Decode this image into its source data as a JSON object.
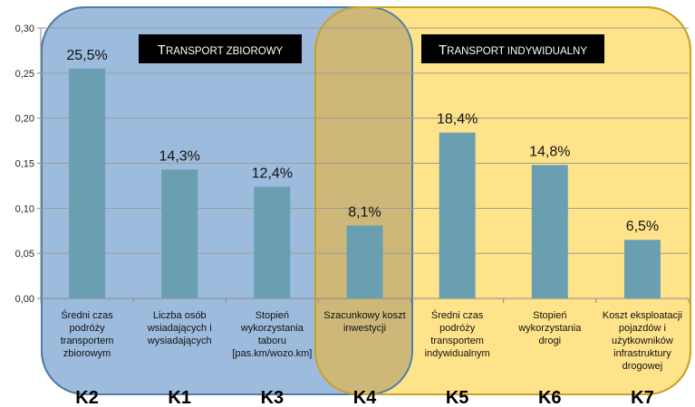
{
  "chart_data": {
    "type": "bar",
    "title": "",
    "xlabel": "",
    "ylabel": "",
    "ylim": [
      0,
      0.3
    ],
    "yticks": [
      "0,00",
      "0,05",
      "0,10",
      "0,15",
      "0,20",
      "0,25",
      "0,30"
    ],
    "grid": true,
    "bar_color": "#6A9FB1",
    "categories": [
      {
        "code": "K2",
        "label": [
          "Średni czas",
          "podróży",
          "transportem",
          "zbiorowym"
        ],
        "value": 0.255,
        "data_label": "25,5%"
      },
      {
        "code": "K1",
        "label": [
          "Liczba osób",
          "wsiadających i",
          "wysiadających"
        ],
        "value": 0.143,
        "data_label": "14,3%"
      },
      {
        "code": "K3",
        "label": [
          "Stopień",
          "wykorzystania",
          "taboru",
          "[pas.km/wozo.km]"
        ],
        "value": 0.124,
        "data_label": "12,4%"
      },
      {
        "code": "K4",
        "label": [
          "Szacunkowy koszt",
          "inwestycji"
        ],
        "value": 0.081,
        "data_label": "8,1%"
      },
      {
        "code": "K5",
        "label": [
          "Średni czas",
          "podróży",
          "transportem",
          "indywidualnym"
        ],
        "value": 0.184,
        "data_label": "18,4%"
      },
      {
        "code": "K6",
        "label": [
          "Stopień",
          "wykorzystania",
          "drogi"
        ],
        "value": 0.148,
        "data_label": "14,8%"
      },
      {
        "code": "K7",
        "label": [
          "Koszt eksploatacji",
          "pojazdów i",
          "użytkowników",
          "infrastruktury",
          "drogowej"
        ],
        "value": 0.065,
        "data_label": "6,5%"
      }
    ],
    "groups": [
      {
        "title": "Transport zbiorowy",
        "first_letter": "T",
        "rest": "RANSPORT ZBIOROWY",
        "fill": "#9DBBDD",
        "stroke": "#4F7FA8",
        "spans": [
          "K2",
          "K4"
        ]
      },
      {
        "title": "Transport indywidualny",
        "first_letter": "T",
        "rest": "RANSPORT INDYWIDUALNY",
        "fill": "#FFE38A",
        "stroke": "#C9A227",
        "spans": [
          "K4",
          "K7"
        ]
      }
    ],
    "overlap_fill": "#CDB87A"
  }
}
